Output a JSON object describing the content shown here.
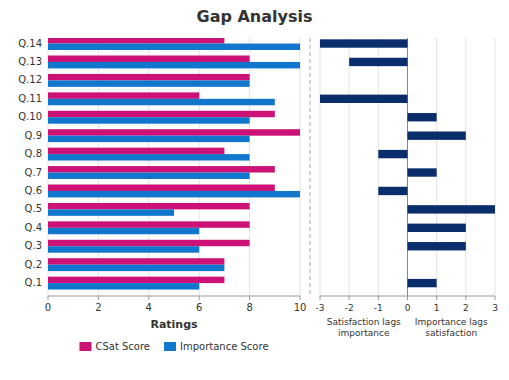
{
  "chart_data": [
    {
      "type": "bar",
      "orientation": "horizontal",
      "title": "Gap Analysis",
      "categories": [
        "Q.1",
        "Q.2",
        "Q.3",
        "Q.4",
        "Q.5",
        "Q.6",
        "Q.7",
        "Q.8",
        "Q.9",
        "Q.10",
        "Q.11",
        "Q.12",
        "Q.13",
        "Q.14"
      ],
      "series": [
        {
          "name": "CSat Score",
          "color": "#CC1177",
          "values": [
            7,
            7,
            8,
            8,
            8,
            9,
            9,
            7,
            10,
            9,
            6,
            8,
            8,
            7
          ]
        },
        {
          "name": "Importance Score",
          "color": "#1177CC",
          "values": [
            6,
            7,
            6,
            6,
            5,
            10,
            8,
            8,
            8,
            8,
            9,
            8,
            10,
            10
          ]
        }
      ],
      "x_label": "Ratings",
      "xlim": [
        0,
        10
      ],
      "xticks": [
        0,
        2,
        4,
        6,
        8,
        10
      ],
      "grid": true,
      "legend": "bottom"
    },
    {
      "type": "bar",
      "orientation": "horizontal",
      "values": [
        1,
        0,
        2,
        2,
        3,
        -1,
        1,
        -1,
        2,
        1,
        -3,
        0,
        -2,
        -3
      ],
      "color": "#0A2D6B",
      "xlim": [
        -3,
        3
      ],
      "xticks": [
        -3,
        -2,
        -1,
        0,
        1,
        2,
        3
      ],
      "grid": true,
      "tick_labels": "x",
      "annotations": [
        "Satisfaction lags\nimportance",
        "Importance lags\nsatisfaction"
      ]
    }
  ]
}
